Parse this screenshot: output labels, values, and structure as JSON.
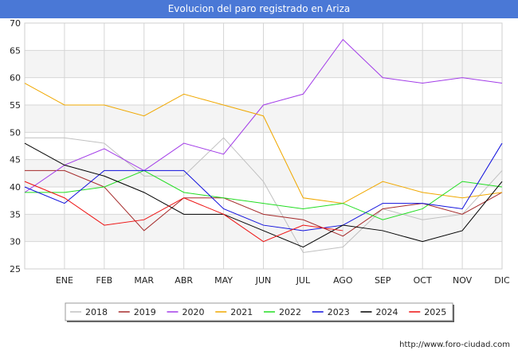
{
  "title": "Evolucion del paro registrado en Ariza",
  "source": "http://www.foro-ciudad.com",
  "chart_data": {
    "type": "line",
    "title": "Evolucion del paro registrado en Ariza",
    "categories": [
      "",
      "ENE",
      "FEB",
      "MAR",
      "ABR",
      "MAY",
      "JUN",
      "JUL",
      "AGO",
      "SEP",
      "OCT",
      "NOV",
      "DIC"
    ],
    "yticks": [
      25,
      30,
      35,
      40,
      45,
      50,
      55,
      60,
      65,
      70
    ],
    "ylim": [
      25,
      70
    ],
    "grid": true,
    "legend_position": "bottom",
    "series": [
      {
        "name": "2018",
        "color": "#c0c0c0",
        "values": [
          49,
          49,
          48,
          42,
          42,
          49,
          41,
          28,
          29,
          36,
          34,
          35,
          43
        ]
      },
      {
        "name": "2019",
        "color": "#a52a2a",
        "values": [
          43,
          43,
          40,
          32,
          38,
          38,
          35,
          34,
          31,
          36,
          37,
          35,
          39
        ]
      },
      {
        "name": "2020",
        "color": "#a23ce8",
        "values": [
          39,
          44,
          47,
          43,
          48,
          46,
          55,
          57,
          67,
          60,
          59,
          60,
          59
        ]
      },
      {
        "name": "2021",
        "color": "#f0a800",
        "values": [
          59,
          55,
          55,
          53,
          57,
          55,
          53,
          38,
          37,
          41,
          39,
          38,
          39
        ]
      },
      {
        "name": "2022",
        "color": "#22dd22",
        "values": [
          39,
          39,
          40,
          43,
          39,
          38,
          37,
          36,
          37,
          34,
          36,
          41,
          40
        ]
      },
      {
        "name": "2023",
        "color": "#1010dd",
        "values": [
          40,
          37,
          43,
          43,
          43,
          36,
          33,
          32,
          33,
          37,
          37,
          36,
          48
        ]
      },
      {
        "name": "2024",
        "color": "#000000",
        "values": [
          48,
          44,
          42,
          39,
          35,
          35,
          32,
          29,
          33,
          32,
          30,
          32,
          41
        ]
      },
      {
        "name": "2025",
        "color": "#ee1111",
        "values": [
          41,
          38,
          33,
          34,
          38,
          35,
          30,
          33,
          32,
          null,
          null,
          null,
          null
        ]
      }
    ]
  }
}
